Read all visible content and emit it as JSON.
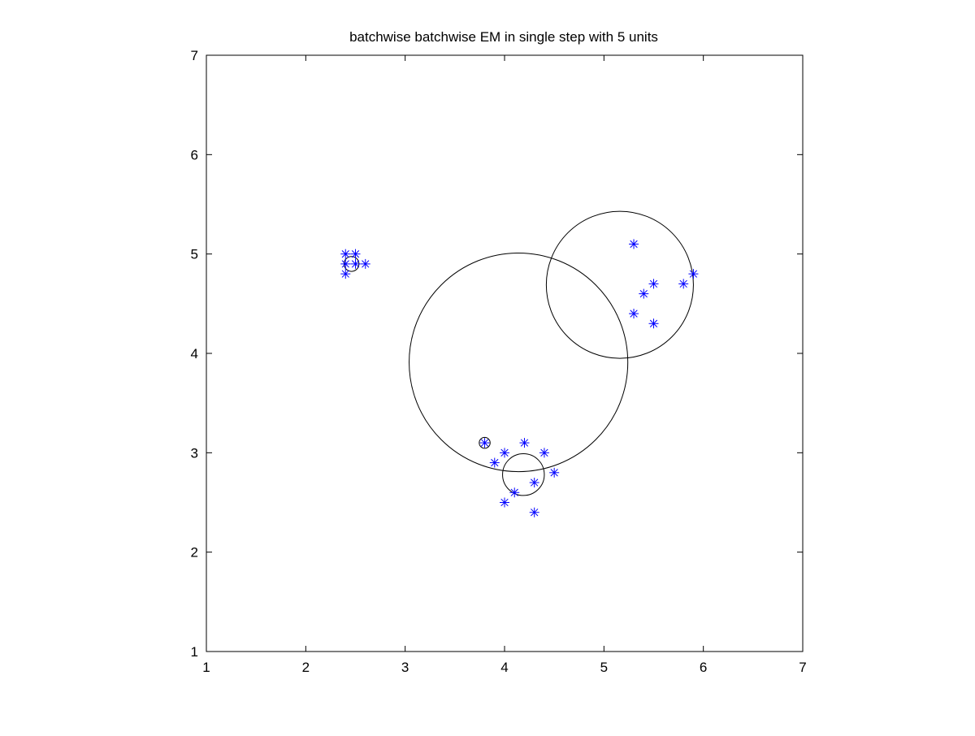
{
  "chart_data": {
    "type": "scatter",
    "title": "batchwise batchwise EM in single step with 5 units",
    "xlabel": "",
    "ylabel": "",
    "xlim": [
      1,
      7
    ],
    "ylim": [
      1,
      7
    ],
    "xticks": [
      1,
      2,
      3,
      4,
      5,
      6,
      7
    ],
    "yticks": [
      1,
      2,
      3,
      4,
      5,
      6,
      7
    ],
    "grid": false,
    "legend": "none",
    "marker_color": "#0000ff",
    "circle_color": "#000000",
    "points": [
      {
        "x": 2.4,
        "y": 5.0
      },
      {
        "x": 2.5,
        "y": 5.0
      },
      {
        "x": 2.4,
        "y": 4.9
      },
      {
        "x": 2.5,
        "y": 4.9
      },
      {
        "x": 2.6,
        "y": 4.9
      },
      {
        "x": 2.4,
        "y": 4.8
      },
      {
        "x": 3.8,
        "y": 3.1
      },
      {
        "x": 4.2,
        "y": 3.1
      },
      {
        "x": 4.0,
        "y": 3.0
      },
      {
        "x": 4.4,
        "y": 3.0
      },
      {
        "x": 3.9,
        "y": 2.9
      },
      {
        "x": 4.5,
        "y": 2.8
      },
      {
        "x": 4.3,
        "y": 2.7
      },
      {
        "x": 4.1,
        "y": 2.6
      },
      {
        "x": 4.0,
        "y": 2.5
      },
      {
        "x": 4.3,
        "y": 2.4
      },
      {
        "x": 5.3,
        "y": 5.1
      },
      {
        "x": 5.9,
        "y": 4.8
      },
      {
        "x": 5.5,
        "y": 4.7
      },
      {
        "x": 5.8,
        "y": 4.7
      },
      {
        "x": 5.4,
        "y": 4.6
      },
      {
        "x": 5.3,
        "y": 4.4
      },
      {
        "x": 5.5,
        "y": 4.3
      }
    ],
    "units": [
      {
        "cx": 2.46,
        "cy": 4.9,
        "r": 0.075
      },
      {
        "cx": 3.8,
        "cy": 3.1,
        "r": 0.055
      },
      {
        "cx": 4.19,
        "cy": 2.78,
        "r": 0.21
      },
      {
        "cx": 4.14,
        "cy": 3.91,
        "r": 1.1
      },
      {
        "cx": 5.16,
        "cy": 4.69,
        "r": 0.74
      }
    ]
  }
}
